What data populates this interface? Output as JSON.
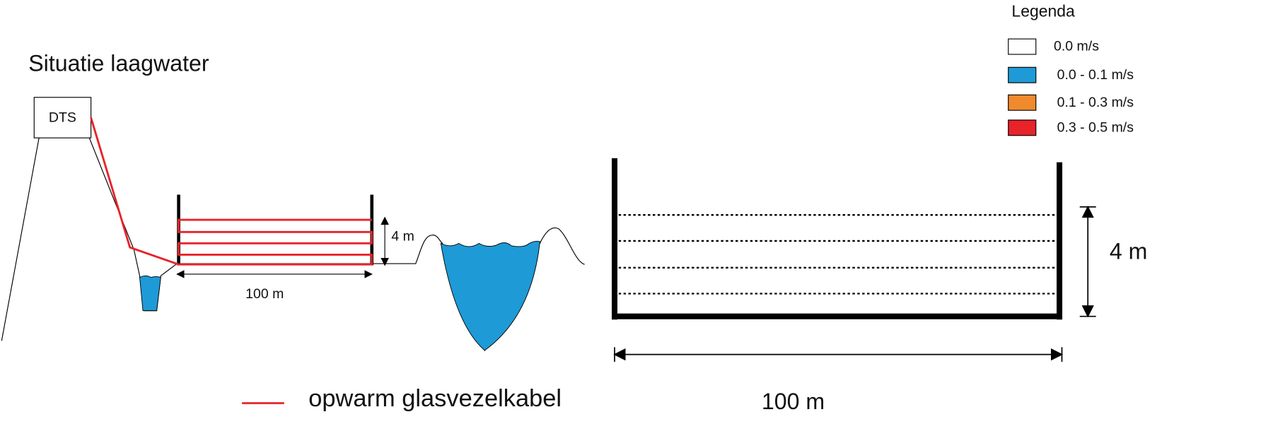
{
  "title": "Situatie laagwater",
  "dts": "DTS",
  "left_section": {
    "height_label": "4 m",
    "width_label": "100 m"
  },
  "right_section": {
    "height_label": "4 m",
    "width_label": "100 m"
  },
  "legend": {
    "title": "Legenda",
    "items": [
      {
        "label": "0.0  m/s",
        "color": "#ffffff"
      },
      {
        "label": "0.0 - 0.1 m/s",
        "color": "#1e9ad6"
      },
      {
        "label": "0.1 - 0.3 m/s",
        "color": "#f08a2c"
      },
      {
        "label": "0.3 - 0.5 m/s",
        "color": "#e8232a"
      }
    ]
  },
  "cable_legend": "opwarm glasvezelkabel"
}
